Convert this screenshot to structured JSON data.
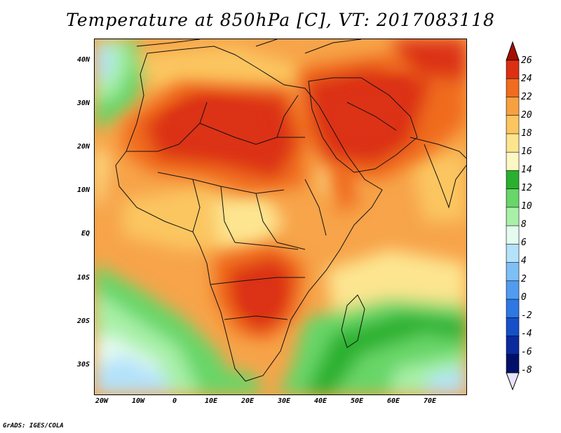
{
  "title": "Temperature at 850hPa [C], VT: 2017083118",
  "footer": "GrADS: IGES/COLA",
  "axes": {
    "lat_labels": [
      "40N",
      "30N",
      "20N",
      "10N",
      "EQ",
      "10S",
      "20S",
      "30S"
    ],
    "lat_values": [
      40,
      30,
      20,
      10,
      0,
      -10,
      -20,
      -30
    ],
    "lon_labels": [
      "20W",
      "10W",
      "0",
      "10E",
      "20E",
      "30E",
      "40E",
      "50E",
      "60E",
      "70E"
    ],
    "lon_values": [
      -20,
      -10,
      0,
      10,
      20,
      30,
      40,
      50,
      60,
      70
    ],
    "lat_range": [
      -37,
      45
    ],
    "lon_range": [
      -22,
      80
    ]
  },
  "colorbar": {
    "labels": [
      "26",
      "24",
      "22",
      "20",
      "18",
      "16",
      "14",
      "12",
      "10",
      "8",
      "6",
      "4",
      "2",
      "0",
      "-2",
      "-4",
      "-6",
      "-8"
    ],
    "colors": [
      "#a50f00",
      "#dc3014",
      "#f06c1e",
      "#f8a040",
      "#fbc660",
      "#fde590",
      "#fdf7c4",
      "#2ab02e",
      "#68d668",
      "#a8f0a8",
      "#e4fbf0",
      "#b4e2fa",
      "#7ec0f5",
      "#519cf0",
      "#2e78e4",
      "#1550c8",
      "#0a2a9e",
      "#00106a",
      "#e8e2fc"
    ]
  }
}
